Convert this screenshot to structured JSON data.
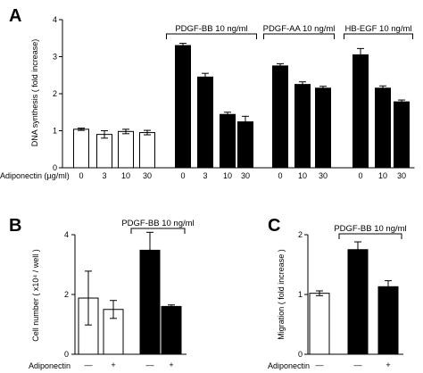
{
  "chart_data": [
    {
      "type": "bar",
      "panel_label": "A",
      "ylabel": "DNA synthesis ( fold increase)",
      "xlabel": "Adiponectin (µg/ml)",
      "ylim": [
        0,
        4
      ],
      "yticks": [
        "0",
        "1",
        "2",
        "3",
        "4"
      ],
      "categories": [
        "0",
        "3",
        "10",
        "30",
        "0",
        "3",
        "10",
        "30",
        "0",
        "10",
        "30",
        "0",
        "10",
        "30"
      ],
      "values": [
        1.04,
        0.9,
        0.98,
        0.95,
        3.3,
        2.45,
        1.44,
        1.24,
        2.75,
        2.25,
        2.15,
        3.05,
        2.15,
        1.78
      ],
      "errors": [
        0.03,
        0.1,
        0.06,
        0.06,
        0.06,
        0.1,
        0.06,
        0.15,
        0.06,
        0.07,
        0.05,
        0.17,
        0.06,
        0.05
      ],
      "fills": [
        "white",
        "white",
        "white",
        "white",
        "black",
        "black",
        "black",
        "black",
        "black",
        "black",
        "black",
        "black",
        "black",
        "black"
      ],
      "groups": [
        {
          "label": "PDGF-BB 10 ng/ml",
          "first": 4,
          "last": 7
        },
        {
          "label": "PDGF-AA 10 ng/ml",
          "first": 8,
          "last": 10
        },
        {
          "label": "HB-EGF 10 ng/ml",
          "first": 11,
          "last": 13
        }
      ]
    },
    {
      "type": "bar",
      "panel_label": "B",
      "ylabel": "Cell number ( x10⁴ / well )",
      "xlabel": "Adiponectin",
      "ylim": [
        0,
        4
      ],
      "yticks": [
        "0",
        "2",
        "4"
      ],
      "categories": [
        "—",
        "+",
        "—",
        "+"
      ],
      "values": [
        1.88,
        1.5,
        3.48,
        1.6
      ],
      "errors": [
        0.9,
        0.3,
        0.6,
        0.05
      ],
      "fills": [
        "white",
        "white",
        "black",
        "black"
      ],
      "groups": [
        {
          "label": "PDGF-BB 10 ng/ml",
          "first": 2,
          "last": 3
        }
      ]
    },
    {
      "type": "bar",
      "panel_label": "C",
      "ylabel": "Migration ( fold increase )",
      "xlabel": "Adiponectin",
      "ylim": [
        0,
        2
      ],
      "yticks": [
        "0",
        "1",
        "2"
      ],
      "categories": [
        "—",
        "—",
        "+"
      ],
      "values": [
        1.02,
        1.75,
        1.13
      ],
      "errors": [
        0.04,
        0.13,
        0.1
      ],
      "fills": [
        "white",
        "black",
        "black"
      ],
      "groups": [
        {
          "label": "PDGF-BB 10 ng/ml",
          "first": 1,
          "last": 2
        }
      ]
    }
  ]
}
